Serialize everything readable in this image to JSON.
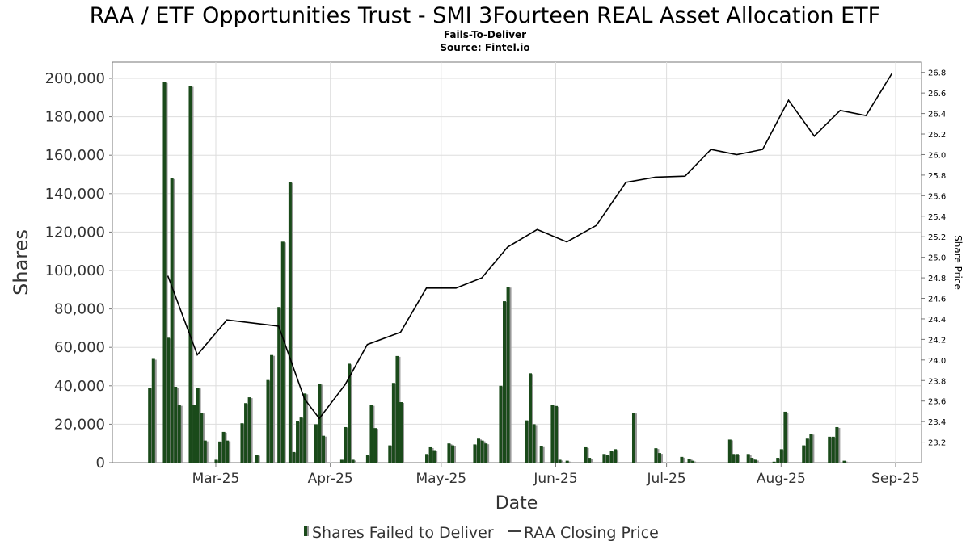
{
  "chart_data": {
    "type": "bar",
    "title": "RAA / ETF Opportunities Trust - SMI 3Fourteen REAL Asset Allocation ETF",
    "subtitle": "Fails-To-Deliver",
    "source": "Source: Fintel.io",
    "xlabel": "Date",
    "ylabel": "Shares",
    "y2label": "Share Price",
    "ylim": [
      0,
      200000
    ],
    "y_ticks": [
      0,
      20000,
      40000,
      60000,
      80000,
      100000,
      120000,
      140000,
      160000,
      180000,
      200000
    ],
    "y_tick_labels": [
      "0",
      "20,000",
      "40,000",
      "60,000",
      "80,000",
      "100,000",
      "120,000",
      "140,000",
      "160,000",
      "180,000",
      "200,000"
    ],
    "y2lim": [
      23.0,
      26.9
    ],
    "y2_ticks": [
      23.2,
      23.4,
      23.6,
      23.8,
      24.0,
      24.2,
      24.4,
      24.6,
      24.8,
      25.0,
      25.2,
      25.4,
      25.6,
      25.8,
      26.0,
      26.2,
      26.4,
      26.6,
      26.8
    ],
    "y2_tick_labels": [
      "23.2",
      "23.4",
      "23.6",
      "23.8",
      "24.0",
      "24.2",
      "24.4",
      "24.6",
      "24.8",
      "25.0",
      "25.2",
      "25.4",
      "25.6",
      "25.8",
      "26.0",
      "26.2",
      "26.4",
      "26.6",
      "26.8"
    ],
    "xlim": [
      "2025-02-01",
      "2025-09-08"
    ],
    "x_ticks": [
      "2025-03-01",
      "2025-04-01",
      "2025-05-01",
      "2025-06-01",
      "2025-07-01",
      "2025-08-01",
      "2025-09-01"
    ],
    "x_tick_labels": [
      "Mar-25",
      "Apr-25",
      "May-25",
      "Jun-25",
      "Jul-25",
      "Aug-25",
      "Sep-25"
    ],
    "grid": true,
    "legend": "bottom",
    "series": [
      {
        "name": "Shares Failed to Deliver",
        "kind": "bar",
        "color": "#1a4a1a",
        "shadow": "#999999",
        "points": [
          [
            "2025-02-11",
            39000
          ],
          [
            "2025-02-12",
            54000
          ],
          [
            "2025-02-15",
            198000
          ],
          [
            "2025-02-16",
            65000
          ],
          [
            "2025-02-17",
            148000
          ],
          [
            "2025-02-18",
            39500
          ],
          [
            "2025-02-19",
            30000
          ],
          [
            "2025-02-22",
            196000
          ],
          [
            "2025-02-23",
            30000
          ],
          [
            "2025-02-24",
            39000
          ],
          [
            "2025-02-25",
            26000
          ],
          [
            "2025-02-26",
            11500
          ],
          [
            "2025-03-01",
            1500
          ],
          [
            "2025-03-02",
            11000
          ],
          [
            "2025-03-03",
            16000
          ],
          [
            "2025-03-04",
            11500
          ],
          [
            "2025-03-08",
            20500
          ],
          [
            "2025-03-09",
            31000
          ],
          [
            "2025-03-10",
            34000
          ],
          [
            "2025-03-12",
            4000
          ],
          [
            "2025-03-15",
            43000
          ],
          [
            "2025-03-16",
            56000
          ],
          [
            "2025-03-18",
            81000
          ],
          [
            "2025-03-19",
            115000
          ],
          [
            "2025-03-21",
            146000
          ],
          [
            "2025-03-22",
            5500
          ],
          [
            "2025-03-23",
            21500
          ],
          [
            "2025-03-24",
            23500
          ],
          [
            "2025-03-25",
            36000
          ],
          [
            "2025-03-28",
            20000
          ],
          [
            "2025-03-29",
            41000
          ],
          [
            "2025-03-30",
            14000
          ],
          [
            "2025-04-04",
            1500
          ],
          [
            "2025-04-05",
            18500
          ],
          [
            "2025-04-06",
            51500
          ],
          [
            "2025-04-07",
            1500
          ],
          [
            "2025-04-11",
            4000
          ],
          [
            "2025-04-12",
            30000
          ],
          [
            "2025-04-13",
            18000
          ],
          [
            "2025-04-17",
            9000
          ],
          [
            "2025-04-18",
            41500
          ],
          [
            "2025-04-19",
            55500
          ],
          [
            "2025-04-20",
            31500
          ],
          [
            "2025-04-27",
            4500
          ],
          [
            "2025-04-28",
            8000
          ],
          [
            "2025-04-29",
            6500
          ],
          [
            "2025-05-03",
            10000
          ],
          [
            "2025-05-04",
            9000
          ],
          [
            "2025-05-10",
            9500
          ],
          [
            "2025-05-11",
            12500
          ],
          [
            "2025-05-12",
            11500
          ],
          [
            "2025-05-13",
            10000
          ],
          [
            "2025-05-17",
            40000
          ],
          [
            "2025-05-18",
            84000
          ],
          [
            "2025-05-19",
            91500
          ],
          [
            "2025-05-24",
            22000
          ],
          [
            "2025-05-25",
            46500
          ],
          [
            "2025-05-26",
            20000
          ],
          [
            "2025-05-28",
            8500
          ],
          [
            "2025-05-31",
            30000
          ],
          [
            "2025-06-01",
            29500
          ],
          [
            "2025-06-02",
            1500
          ],
          [
            "2025-06-04",
            1000
          ],
          [
            "2025-06-09",
            8000
          ],
          [
            "2025-06-10",
            2500
          ],
          [
            "2025-06-14",
            4500
          ],
          [
            "2025-06-15",
            4000
          ],
          [
            "2025-06-16",
            6000
          ],
          [
            "2025-06-17",
            7000
          ],
          [
            "2025-06-22",
            26000
          ],
          [
            "2025-06-28",
            7500
          ],
          [
            "2025-06-29",
            5000
          ],
          [
            "2025-07-05",
            3000
          ],
          [
            "2025-07-07",
            2000
          ],
          [
            "2025-07-08",
            1000
          ],
          [
            "2025-07-18",
            12000
          ],
          [
            "2025-07-19",
            4500
          ],
          [
            "2025-07-20",
            4500
          ],
          [
            "2025-07-23",
            4500
          ],
          [
            "2025-07-24",
            2500
          ],
          [
            "2025-07-25",
            1500
          ],
          [
            "2025-07-30",
            500
          ],
          [
            "2025-07-31",
            2500
          ],
          [
            "2025-08-01",
            7000
          ],
          [
            "2025-08-02",
            26500
          ],
          [
            "2025-08-07",
            9000
          ],
          [
            "2025-08-08",
            12500
          ],
          [
            "2025-08-09",
            15000
          ],
          [
            "2025-08-14",
            13500
          ],
          [
            "2025-08-15",
            13500
          ],
          [
            "2025-08-16",
            18500
          ],
          [
            "2025-08-18",
            1000
          ]
        ]
      },
      {
        "name": "RAA Closing Price",
        "kind": "line",
        "color": "#000000",
        "points": [
          [
            "2025-02-16",
            24.82
          ],
          [
            "2025-02-24",
            24.05
          ],
          [
            "2025-03-04",
            24.39
          ],
          [
            "2025-03-18",
            24.33
          ],
          [
            "2025-03-25",
            23.62
          ],
          [
            "2025-03-29",
            23.43
          ],
          [
            "2025-04-05",
            23.76
          ],
          [
            "2025-04-11",
            24.15
          ],
          [
            "2025-04-20",
            24.27
          ],
          [
            "2025-04-27",
            24.7
          ],
          [
            "2025-05-05",
            24.7
          ],
          [
            "2025-05-12",
            24.8
          ],
          [
            "2025-05-19",
            25.1
          ],
          [
            "2025-05-27",
            25.27
          ],
          [
            "2025-06-04",
            25.15
          ],
          [
            "2025-06-12",
            25.31
          ],
          [
            "2025-06-20",
            25.73
          ],
          [
            "2025-06-28",
            25.78
          ],
          [
            "2025-07-06",
            25.79
          ],
          [
            "2025-07-13",
            26.05
          ],
          [
            "2025-07-20",
            26.0
          ],
          [
            "2025-07-27",
            26.05
          ],
          [
            "2025-08-03",
            26.53
          ],
          [
            "2025-08-10",
            26.18
          ],
          [
            "2025-08-17",
            26.43
          ],
          [
            "2025-08-24",
            26.38
          ],
          [
            "2025-08-31",
            26.79
          ]
        ]
      }
    ]
  }
}
